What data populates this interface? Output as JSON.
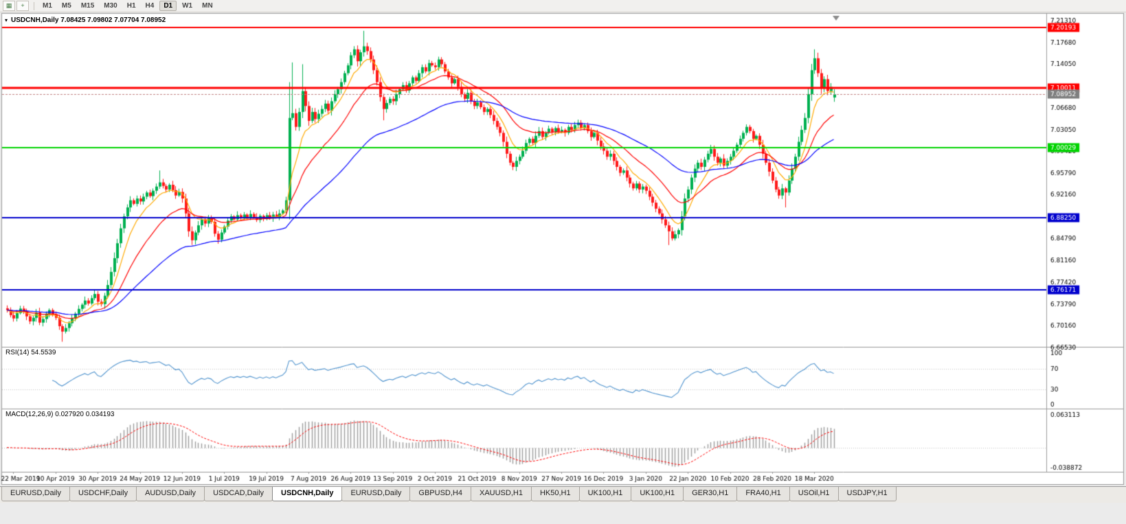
{
  "toolbar": {
    "icons": [
      {
        "name": "chart-icon",
        "glyph": "▦"
      },
      {
        "name": "crosshair-icon",
        "glyph": "+"
      }
    ],
    "timeframes": [
      {
        "label": "M1",
        "active": false
      },
      {
        "label": "M5",
        "active": false
      },
      {
        "label": "M15",
        "active": false
      },
      {
        "label": "M30",
        "active": false
      },
      {
        "label": "H1",
        "active": false
      },
      {
        "label": "H4",
        "active": false
      },
      {
        "label": "D1",
        "active": true
      },
      {
        "label": "W1",
        "active": false
      },
      {
        "label": "MN",
        "active": false
      }
    ]
  },
  "chart_window": {
    "one_click_glyph": "▾",
    "title_text": "USDCNH,Daily 7.08425 7.09802 7.07704 7.08952"
  },
  "chart_data": {
    "type": "candlestick",
    "symbol": "USDCNH",
    "timeframe": "Daily",
    "ohlc_display": {
      "open": "7.08425",
      "high": "7.09802",
      "low": "7.07704",
      "close": "7.08952"
    },
    "price_axis": {
      "max": 7.2131,
      "min": 6.6653,
      "labels": [
        "7.21310",
        "7.17680",
        "7.14050",
        "7.06680",
        "7.03050",
        "6.99420",
        "6.95790",
        "6.92160",
        "6.84790",
        "6.81160",
        "6.77420",
        "6.73790",
        "6.70160",
        "6.66530"
      ]
    },
    "x_labels": [
      "22 Mar 2019",
      "10 Apr 2019",
      "30 Apr 2019",
      "24 May 2019",
      "12 Jun 2019",
      "1 Jul 2019",
      "19 Jul 2019",
      "7 Aug 2019",
      "26 Aug 2019",
      "13 Sep 2019",
      "2 Oct 2019",
      "21 Oct 2019",
      "8 Nov 2019",
      "27 Nov 2019",
      "16 Dec 2019",
      "3 Jan 2020",
      "22 Jan 2020",
      "10 Feb 2020",
      "28 Feb 2020",
      "18 Mar 2020"
    ],
    "x_label_indices": [
      2,
      15,
      28,
      41,
      54,
      67,
      80,
      93,
      106,
      119,
      132,
      145,
      158,
      171,
      184,
      197,
      210,
      223,
      236,
      249
    ],
    "levels": [
      {
        "value": 7.20193,
        "label": "7.20193",
        "color": "#ff0000",
        "width": 2
      },
      {
        "value": 7.10011,
        "label": "7.10011",
        "color": "#ff0000",
        "width": 3
      },
      {
        "value": 7.00029,
        "label": "7.00029",
        "color": "#00d300",
        "width": 2
      },
      {
        "value": 6.8825,
        "label": "6.88250",
        "color": "#0000cd",
        "width": 2
      },
      {
        "value": 6.76171,
        "label": "6.76171",
        "color": "#0000cd",
        "width": 2
      }
    ],
    "current_price": {
      "value": 7.08952,
      "label": "7.08952",
      "badge_color": "#7f7f7f",
      "line_color": "#c08080"
    },
    "candle_colors": {
      "up": "#00b050",
      "down": "#ff1a1a"
    },
    "moving_averages": [
      {
        "period": 8,
        "color": "#ffaa00"
      },
      {
        "period": 21,
        "color": "#ff0000"
      },
      {
        "period": 55,
        "color": "#0000ff"
      }
    ],
    "closes": [
      6.728,
      6.7195,
      6.714,
      6.723,
      6.7305,
      6.726,
      6.7175,
      6.709,
      6.715,
      6.724,
      6.707,
      6.713,
      6.722,
      6.728,
      6.721,
      6.715,
      6.701,
      6.692,
      6.698,
      6.706,
      6.714,
      6.722,
      6.73,
      6.737,
      6.744,
      6.739,
      6.748,
      6.755,
      6.742,
      6.738,
      6.752,
      6.77,
      6.792,
      6.815,
      6.84,
      6.865,
      6.885,
      6.9,
      6.912,
      6.906,
      6.915,
      6.91,
      6.918,
      6.925,
      6.919,
      6.928,
      6.935,
      6.942,
      6.936,
      6.93,
      6.938,
      6.929,
      6.92,
      6.926,
      6.915,
      6.89,
      6.86,
      6.845,
      6.858,
      6.87,
      6.88,
      6.873,
      6.882,
      6.876,
      6.856,
      6.846,
      6.858,
      6.868,
      6.878,
      6.885,
      6.88,
      6.887,
      6.882,
      6.888,
      6.883,
      6.889,
      6.884,
      6.879,
      6.886,
      6.881,
      6.887,
      6.882,
      6.888,
      6.884,
      6.89,
      6.895,
      6.912,
      7.05,
      7.058,
      7.035,
      7.06,
      7.095,
      7.07,
      7.045,
      7.06,
      7.048,
      7.057,
      7.065,
      7.074,
      7.062,
      7.078,
      7.09,
      7.098,
      7.11,
      7.125,
      7.138,
      7.155,
      7.165,
      7.145,
      7.16,
      7.17,
      7.162,
      7.148,
      7.13,
      7.11,
      7.085,
      7.065,
      7.075,
      7.082,
      7.078,
      7.09,
      7.098,
      7.105,
      7.096,
      7.108,
      7.118,
      7.112,
      7.125,
      7.135,
      7.128,
      7.142,
      7.138,
      7.135,
      7.148,
      7.14,
      7.128,
      7.118,
      7.108,
      7.115,
      7.102,
      7.09,
      7.082,
      7.092,
      7.078,
      7.07,
      7.076,
      7.068,
      7.06,
      7.065,
      7.055,
      7.045,
      7.035,
      7.025,
      7.01,
      6.99,
      6.975,
      6.968,
      6.978,
      6.985,
      6.995,
      7.008,
      7.015,
      7.008,
      7.02,
      7.028,
      7.018,
      7.025,
      7.032,
      7.026,
      7.033,
      7.027,
      7.03,
      7.025,
      7.035,
      7.03,
      7.038,
      7.042,
      7.033,
      7.038,
      7.028,
      7.018,
      7.025,
      7.012,
      7.002,
      6.995,
      6.985,
      6.99,
      6.978,
      6.968,
      6.958,
      6.962,
      6.95,
      6.94,
      6.932,
      6.94,
      6.93,
      6.935,
      6.928,
      6.918,
      6.908,
      6.898,
      6.89,
      6.88,
      6.87,
      6.86,
      6.848,
      6.855,
      6.862,
      6.885,
      6.915,
      6.93,
      6.95,
      6.965,
      6.975,
      6.968,
      6.98,
      6.99,
      6.998,
      6.985,
      6.975,
      6.982,
      6.97,
      6.978,
      6.985,
      6.995,
      7.005,
      7.015,
      7.025,
      7.035,
      7.028,
      7.015,
      7.02,
      7.005,
      6.99,
      6.975,
      6.96,
      6.945,
      6.93,
      6.92,
      6.932,
      6.925,
      6.945,
      6.965,
      6.985,
      7.01,
      7.03,
      7.05,
      7.09,
      7.13,
      7.15,
      7.125,
      7.1,
      7.115,
      7.095,
      7.102,
      7.0895
    ],
    "wick_overrides": {
      "17": {
        "low": 6.675
      },
      "47": {
        "high": 6.962
      },
      "87": {
        "low": 6.88,
        "high": 7.11
      },
      "88": {
        "high": 7.143
      },
      "91": {
        "high": 7.14
      },
      "110": {
        "high": 7.196
      },
      "116": {
        "low": 7.046
      },
      "204": {
        "low": 6.837
      },
      "240": {
        "low": 6.9
      },
      "249": {
        "high": 7.165
      },
      "255": {
        "open": 7.08425,
        "high": 7.09802,
        "low": 7.07704,
        "close": 7.08952
      }
    },
    "rsi": {
      "display": "RSI(14) 54.5539",
      "period": 14,
      "value": 54.5539,
      "line_color": "#4f93ce",
      "axis_labels": [
        100,
        70,
        30,
        0
      ],
      "guide_levels": [
        70,
        30
      ]
    },
    "macd": {
      "display": "MACD(12,26,9) 0.027920 0.034193",
      "fast": 12,
      "slow": 26,
      "signal_period": 9,
      "macd_value": 0.02792,
      "signal_value": 0.034193,
      "axis_max": 0.063113,
      "axis_min": -0.038872,
      "axis_max_label": "0.063113",
      "axis_min_label": "-0.038872",
      "hist_color": "#9b9b9b",
      "signal_color": "#ff0000"
    }
  },
  "tabs": [
    {
      "label": "EURUSD,Daily",
      "active": false
    },
    {
      "label": "USDCHF,Daily",
      "active": false
    },
    {
      "label": "AUDUSD,Daily",
      "active": false
    },
    {
      "label": "USDCAD,Daily",
      "active": false
    },
    {
      "label": "USDCNH,Daily",
      "active": true
    },
    {
      "label": "EURUSD,Daily",
      "active": false
    },
    {
      "label": "GBPUSD,H4",
      "active": false
    },
    {
      "label": "XAUUSD,H1",
      "active": false
    },
    {
      "label": "HK50,H1",
      "active": false
    },
    {
      "label": "UK100,H1",
      "active": false
    },
    {
      "label": "UK100,H1",
      "active": false
    },
    {
      "label": "GER30,H1",
      "active": false
    },
    {
      "label": "FRA40,H1",
      "active": false
    },
    {
      "label": "USOil,H1",
      "active": false
    },
    {
      "label": "USDJPY,H1",
      "active": false
    }
  ]
}
